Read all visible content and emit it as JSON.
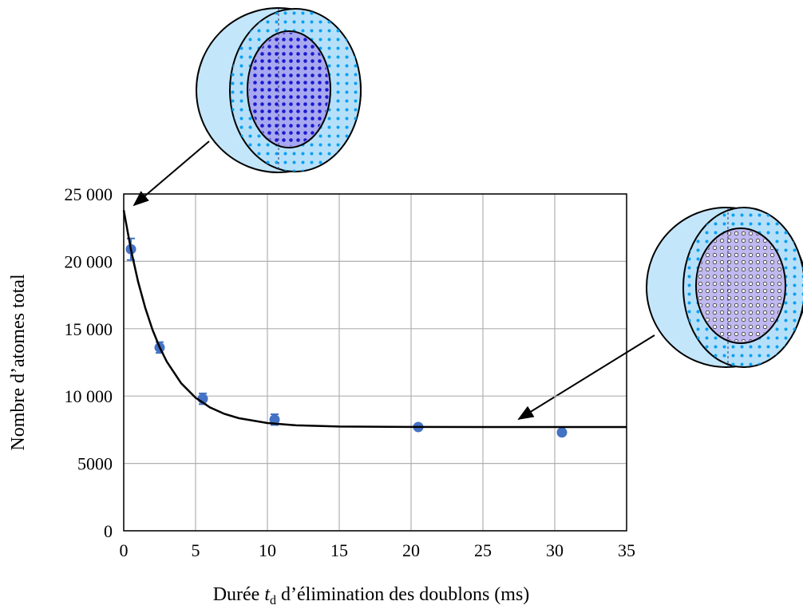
{
  "chart_data": {
    "type": "scatter",
    "xlabel": [
      "Durée ",
      "t",
      "d",
      " d’élimination des doublons (ms)"
    ],
    "ylabel": "Nombre d’atomes total",
    "xlim": [
      0,
      35
    ],
    "xticks": [
      0,
      5,
      10,
      15,
      20,
      25,
      30,
      35
    ],
    "ylim": [
      0,
      25000
    ],
    "yticks": [
      0,
      5000,
      {
        "value": 10000,
        "label": "10 000"
      },
      {
        "value": 15000,
        "label": "15 000"
      },
      {
        "value": 20000,
        "label": "20 000"
      },
      {
        "value": 25000,
        "label": "25 000"
      }
    ],
    "grid": true,
    "series": [
      {
        "style": "points",
        "color": "#4472c4",
        "x": [
          0.5,
          2.5,
          5.5,
          10.5,
          20.5,
          30.5
        ],
        "values": [
          20900,
          13600,
          9800,
          8250,
          7700,
          7300
        ],
        "errors": [
          800,
          400,
          400,
          400,
          150,
          150
        ]
      },
      {
        "style": "line",
        "color": "#000000",
        "x": [
          0,
          0.5,
          1,
          1.5,
          2,
          2.5,
          3,
          4,
          5,
          6,
          7,
          8,
          10,
          12,
          15,
          20,
          25,
          30,
          35
        ],
        "values": [
          23800,
          20880,
          18490,
          16540,
          14930,
          13620,
          12550,
          10950,
          9880,
          9160,
          8680,
          8360,
          8000,
          7830,
          7740,
          7710,
          7700,
          7700,
          7700
        ]
      }
    ]
  }
}
